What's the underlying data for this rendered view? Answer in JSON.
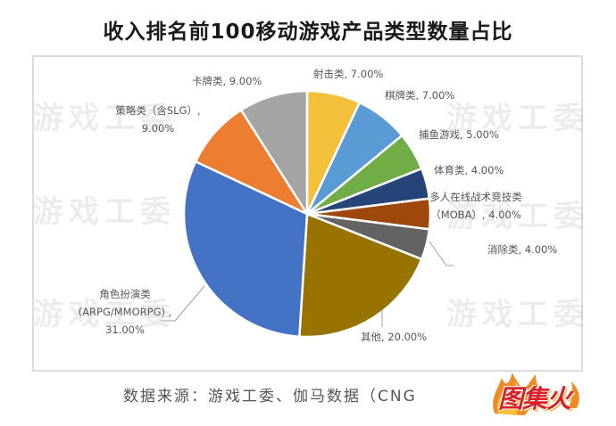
{
  "title": "收入排名前100移动游戏产品类型数量占比",
  "source": "数据来源：游戏工委、伽马数据（CNG",
  "logo": {
    "text": "图集火"
  },
  "watermark": "游戏工委",
  "chart_data": {
    "type": "pie",
    "title": "收入排名前100移动游戏产品类型数量占比",
    "start_angle": "12 o'clock, clockwise",
    "categories": [
      "射击类",
      "棋牌类",
      "捕鱼游戏",
      "体育类",
      "多人在线战术竞技类（MOBA）",
      "消除类",
      "其他",
      "角色扮演类（ARPG/MMORPG）",
      "策略类（含SLG）",
      "卡牌类"
    ],
    "values": [
      7.0,
      7.0,
      5.0,
      4.0,
      4.0,
      4.0,
      20.0,
      31.0,
      9.0,
      9.0
    ],
    "unit": "%",
    "colors": [
      "#f2c03b",
      "#5b9bd5",
      "#70ad47",
      "#264478",
      "#9e480e",
      "#636363",
      "#997300",
      "#4472c4",
      "#ed7d31",
      "#a5a5a5"
    ],
    "labels": [
      "射击类, 7.00%",
      "棋牌类, 7.00%",
      "捕鱼游戏, 5.00%",
      "体育类, 4.00%",
      "多人在线战术竞技类\n（MOBA）, 4.00%",
      "消除类, 4.00%",
      "其他, 20.00%",
      "角色扮演类\n(ARPG/MMORPG) ,\n31.00%",
      "策略类（含SLG）,\n9.00%",
      "卡牌类, 9.00%"
    ],
    "legend": "none (data labels)"
  },
  "labels": {
    "shooting": "射击类, 7.00%",
    "chess": "棋牌类, 7.00%",
    "fishing": "捕鱼游戏, 5.00%",
    "sports": "体育类, 4.00%",
    "moba_l1": "多人在线战术竞技类",
    "moba_l2": "（MOBA）, 4.00%",
    "match3": "消除类, 4.00%",
    "other": "其他, 20.00%",
    "rpg_l1": "角色扮演类",
    "rpg_l2": "(ARPG/MMORPG) ,",
    "rpg_l3": "31.00%",
    "slg_l1": "策略类（含SLG）,",
    "slg_l2": "9.00%",
    "card": "卡牌类, 9.00%"
  }
}
